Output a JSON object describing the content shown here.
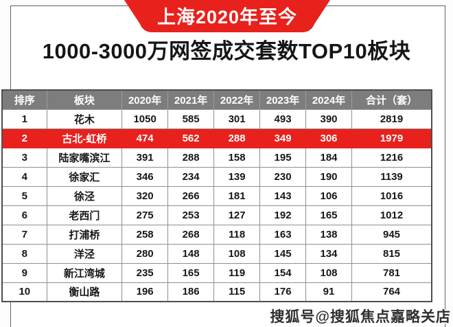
{
  "colors": {
    "accent_red": "#e8211c",
    "header_gray": "#7d7d7d"
  },
  "banner": {
    "ribbon_label": "上海2020年至今",
    "title": "1000-3000万网签成交套数TOP10板块"
  },
  "watermark": {
    "text": "搜狐号@搜狐焦点嘉略关店"
  },
  "chart_data": {
    "type": "table",
    "subtitle": "上海2020年至今",
    "title": "1000-3000万网签成交套数TOP10板块",
    "columns": [
      "排序",
      "板块",
      "2020年",
      "2021年",
      "2022年",
      "2023年",
      "2024年",
      "合计（套）"
    ],
    "column_widths_pct": [
      10.4,
      17.5,
      10.7,
      10.7,
      10.7,
      10.7,
      10.7,
      18.6
    ],
    "rows": [
      [
        1,
        "花木",
        1050,
        585,
        301,
        493,
        390,
        2819
      ],
      [
        2,
        "古北-虹桥",
        474,
        562,
        288,
        349,
        306,
        1979
      ],
      [
        3,
        "陆家嘴滨江",
        391,
        288,
        158,
        195,
        184,
        1216
      ],
      [
        4,
        "徐家汇",
        346,
        234,
        139,
        230,
        190,
        1139
      ],
      [
        5,
        "徐泾",
        320,
        266,
        181,
        143,
        106,
        1016
      ],
      [
        6,
        "老西门",
        275,
        253,
        127,
        192,
        165,
        1012
      ],
      [
        7,
        "打浦桥",
        258,
        268,
        118,
        163,
        138,
        945
      ],
      [
        8,
        "洋泾",
        280,
        148,
        108,
        145,
        134,
        815
      ],
      [
        9,
        "新江湾城",
        235,
        165,
        119,
        154,
        108,
        781
      ],
      [
        10,
        "衡山路",
        196,
        186,
        115,
        176,
        91,
        764
      ]
    ],
    "highlighted_rank": 2,
    "legend_position": "none",
    "grid": true
  }
}
